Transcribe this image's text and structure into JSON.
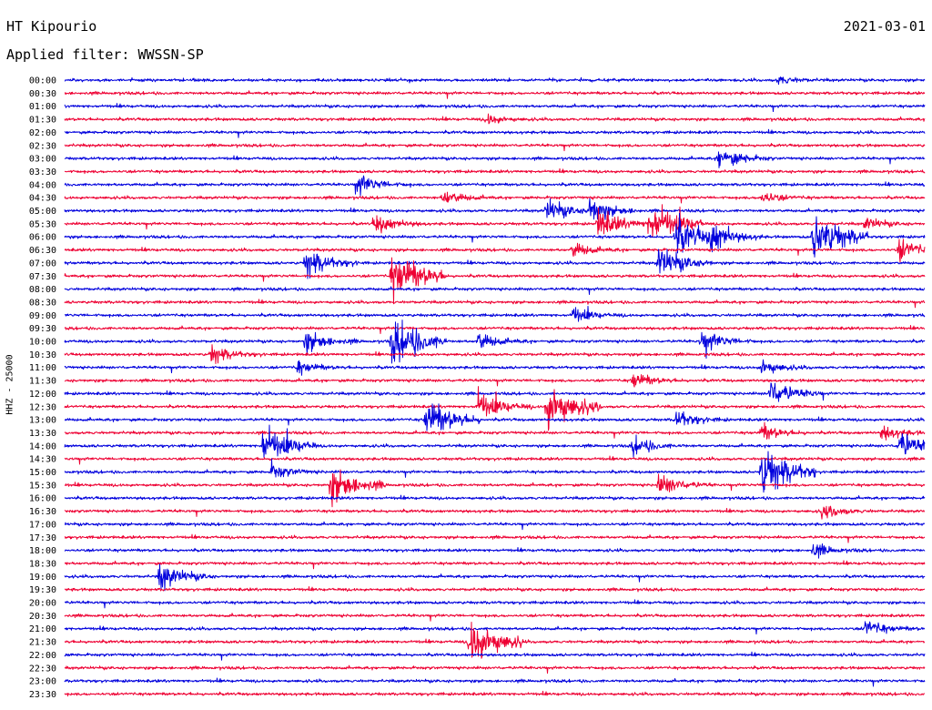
{
  "header": {
    "station": "HT Kipourio",
    "date": "2021-03-01",
    "filter": "Applied filter: WWSSN-SP"
  },
  "colors": {
    "blue": "#0000dd",
    "red": "#ee0033"
  },
  "chart_data": {
    "type": "line",
    "title": "HT Kipourio",
    "ylabel": "HHZ - 25000",
    "row_labels": [
      "00:00",
      "00:30",
      "01:00",
      "01:30",
      "02:00",
      "02:30",
      "03:00",
      "03:30",
      "04:00",
      "04:30",
      "05:00",
      "05:30",
      "06:00",
      "06:30",
      "07:00",
      "07:30",
      "08:00",
      "08:30",
      "09:00",
      "09:30",
      "10:00",
      "10:30",
      "11:00",
      "11:30",
      "12:00",
      "12:30",
      "13:00",
      "13:30",
      "14:00",
      "14:30",
      "15:00",
      "15:30",
      "16:00",
      "16:30",
      "17:00",
      "17:30",
      "18:00",
      "18:30",
      "19:00",
      "19:30",
      "20:00",
      "20:30",
      "21:00",
      "21:30",
      "22:00",
      "22:30",
      "23:00",
      "23:30"
    ],
    "series": [
      {
        "color": "blue",
        "rows": [
          0,
          2,
          4,
          6,
          8,
          10,
          12,
          14,
          16,
          18,
          20,
          22,
          24,
          26,
          28,
          30,
          32,
          34,
          36,
          38,
          40,
          42,
          44,
          46
        ]
      },
      {
        "color": "red",
        "rows": [
          1,
          3,
          5,
          7,
          9,
          11,
          13,
          15,
          17,
          19,
          21,
          23,
          25,
          27,
          29,
          31,
          33,
          35,
          37,
          39,
          41,
          43,
          45,
          47
        ]
      }
    ],
    "events": [
      {
        "row": 0,
        "pos": 0.83,
        "amp": 0.2
      },
      {
        "row": 3,
        "pos": 0.49,
        "amp": 0.25
      },
      {
        "row": 6,
        "pos": 0.76,
        "amp": 0.5
      },
      {
        "row": 8,
        "pos": 0.34,
        "amp": 0.45
      },
      {
        "row": 9,
        "pos": 0.44,
        "amp": 0.35
      },
      {
        "row": 9,
        "pos": 0.81,
        "amp": 0.3
      },
      {
        "row": 10,
        "pos": 0.56,
        "amp": 0.5
      },
      {
        "row": 10,
        "pos": 0.61,
        "amp": 0.55
      },
      {
        "row": 11,
        "pos": 0.36,
        "amp": 0.45
      },
      {
        "row": 11,
        "pos": 0.62,
        "amp": 0.6
      },
      {
        "row": 11,
        "pos": 0.68,
        "amp": 0.9
      },
      {
        "row": 11,
        "pos": 0.93,
        "amp": 0.3
      },
      {
        "row": 12,
        "pos": 0.71,
        "amp": 0.8
      },
      {
        "row": 12,
        "pos": 0.75,
        "amp": 0.6
      },
      {
        "row": 12,
        "pos": 0.87,
        "amp": 1.0
      },
      {
        "row": 13,
        "pos": 0.59,
        "amp": 0.35
      },
      {
        "row": 13,
        "pos": 0.97,
        "amp": 0.5
      },
      {
        "row": 14,
        "pos": 0.28,
        "amp": 0.6
      },
      {
        "row": 14,
        "pos": 0.69,
        "amp": 0.7
      },
      {
        "row": 15,
        "pos": 0.38,
        "amp": 1.0
      },
      {
        "row": 18,
        "pos": 0.59,
        "amp": 0.35
      },
      {
        "row": 20,
        "pos": 0.28,
        "amp": 0.5
      },
      {
        "row": 20,
        "pos": 0.38,
        "amp": 1.0
      },
      {
        "row": 20,
        "pos": 0.48,
        "amp": 0.4
      },
      {
        "row": 20,
        "pos": 0.74,
        "amp": 0.5
      },
      {
        "row": 21,
        "pos": 0.17,
        "amp": 0.4
      },
      {
        "row": 22,
        "pos": 0.27,
        "amp": 0.3
      },
      {
        "row": 22,
        "pos": 0.81,
        "amp": 0.35
      },
      {
        "row": 23,
        "pos": 0.66,
        "amp": 0.35
      },
      {
        "row": 24,
        "pos": 0.82,
        "amp": 0.6
      },
      {
        "row": 25,
        "pos": 0.48,
        "amp": 0.6
      },
      {
        "row": 25,
        "pos": 0.56,
        "amp": 1.0
      },
      {
        "row": 26,
        "pos": 0.42,
        "amp": 0.8
      },
      {
        "row": 26,
        "pos": 0.71,
        "amp": 0.4
      },
      {
        "row": 27,
        "pos": 0.81,
        "amp": 0.35
      },
      {
        "row": 27,
        "pos": 0.95,
        "amp": 0.35
      },
      {
        "row": 28,
        "pos": 0.23,
        "amp": 0.8
      },
      {
        "row": 28,
        "pos": 0.66,
        "amp": 0.4
      },
      {
        "row": 28,
        "pos": 0.97,
        "amp": 0.6
      },
      {
        "row": 30,
        "pos": 0.24,
        "amp": 0.35
      },
      {
        "row": 30,
        "pos": 0.81,
        "amp": 1.0
      },
      {
        "row": 31,
        "pos": 0.31,
        "amp": 0.8
      },
      {
        "row": 31,
        "pos": 0.69,
        "amp": 0.5
      },
      {
        "row": 33,
        "pos": 0.88,
        "amp": 0.35
      },
      {
        "row": 36,
        "pos": 0.87,
        "amp": 0.3
      },
      {
        "row": 38,
        "pos": 0.11,
        "amp": 0.6
      },
      {
        "row": 42,
        "pos": 0.93,
        "amp": 0.4
      },
      {
        "row": 43,
        "pos": 0.47,
        "amp": 1.0
      }
    ]
  }
}
